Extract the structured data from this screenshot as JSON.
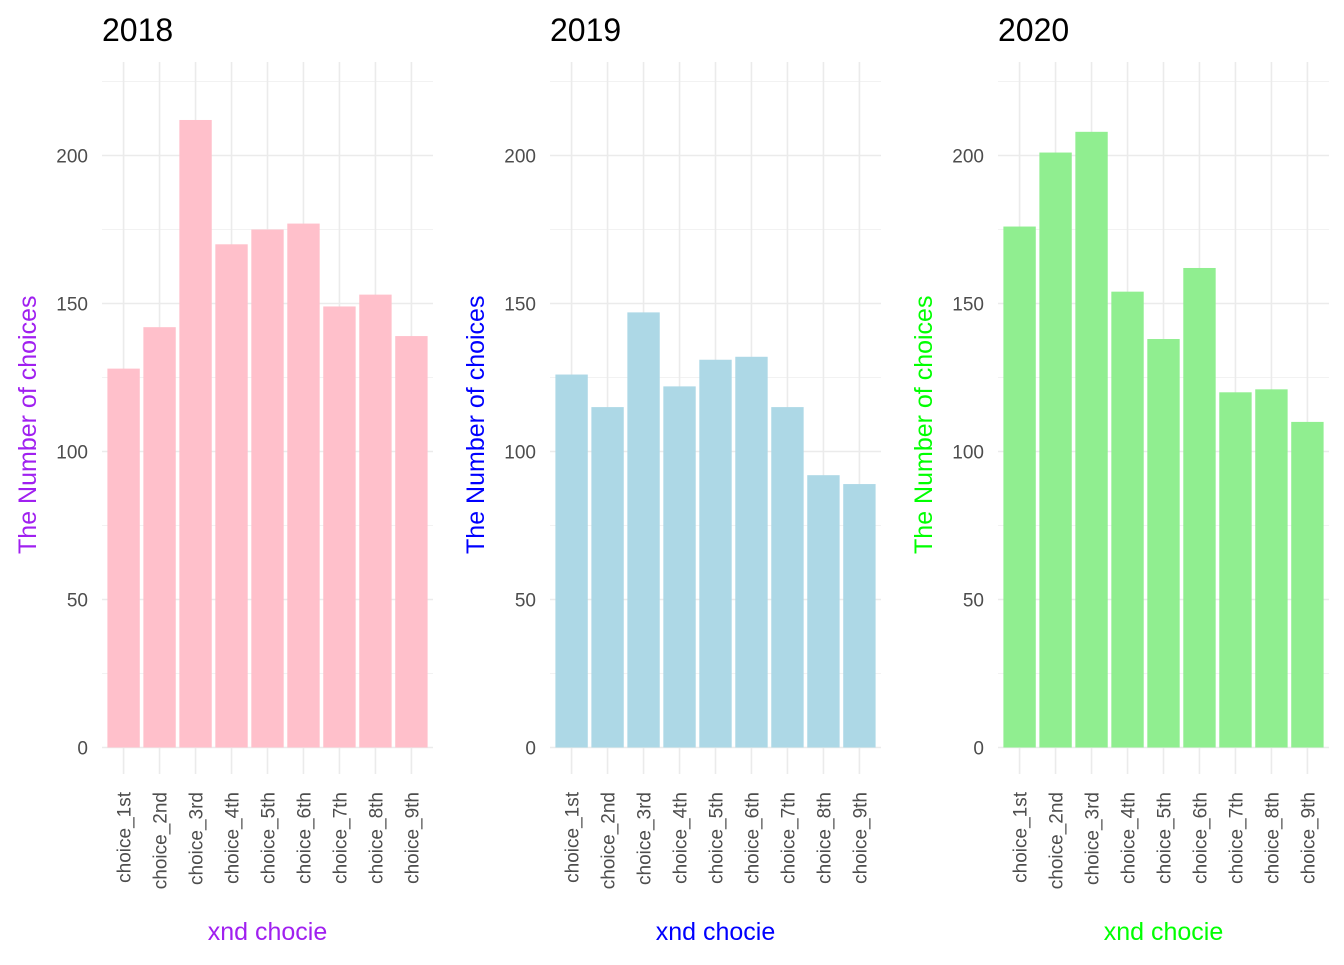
{
  "chart_data": [
    {
      "type": "bar",
      "title": "2018",
      "xlabel": "xnd chocie",
      "ylabel": "The Number of choices",
      "label_color": "#A020F0",
      "bar_color": "#FFC0CB",
      "categories": [
        "choice_1st",
        "choice_2nd",
        "choice_3rd",
        "choice_4th",
        "choice_5th",
        "choice_6th",
        "choice_7th",
        "choice_8th",
        "choice_9th"
      ],
      "values": [
        128,
        142,
        212,
        170,
        175,
        177,
        149,
        153,
        139
      ],
      "yticks": [
        0,
        50,
        100,
        150,
        200
      ],
      "ylim": [
        0,
        225
      ],
      "grid": true
    },
    {
      "type": "bar",
      "title": "2019",
      "xlabel": "xnd chocie",
      "ylabel": "The Number of choices",
      "label_color": "#0000FF",
      "bar_color": "#ADD8E6",
      "categories": [
        "choice_1st",
        "choice_2nd",
        "choice_3rd",
        "choice_4th",
        "choice_5th",
        "choice_6th",
        "choice_7th",
        "choice_8th",
        "choice_9th"
      ],
      "values": [
        126,
        115,
        147,
        122,
        131,
        132,
        115,
        92,
        89
      ],
      "yticks": [
        0,
        50,
        100,
        150,
        200
      ],
      "ylim": [
        0,
        225
      ],
      "grid": true
    },
    {
      "type": "bar",
      "title": "2020",
      "xlabel": "xnd chocie",
      "ylabel": "The Number of choices",
      "label_color": "#00FF00",
      "bar_color": "#90EE90",
      "categories": [
        "choice_1st",
        "choice_2nd",
        "choice_3rd",
        "choice_4th",
        "choice_5th",
        "choice_6th",
        "choice_7th",
        "choice_8th",
        "choice_9th"
      ],
      "values": [
        176,
        201,
        208,
        154,
        138,
        162,
        120,
        121,
        110
      ],
      "yticks": [
        0,
        50,
        100,
        150,
        200
      ],
      "ylim": [
        0,
        225
      ],
      "grid": true
    }
  ]
}
